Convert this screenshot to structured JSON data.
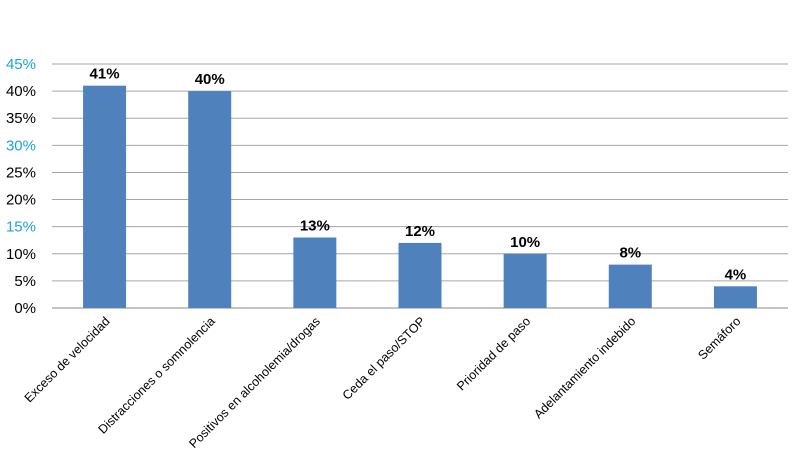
{
  "chart_data": {
    "type": "bar",
    "title": "",
    "xlabel": "",
    "ylabel": "",
    "categories": [
      "Exceso de velocidad",
      "Distracciones o somnolencia",
      "Positivos en alcoholemia/drogas",
      "Ceda el paso/STOP",
      "Prioridad de paso",
      "Adelantamiento indebido",
      "Semáforo"
    ],
    "values": [
      41,
      40,
      13,
      12,
      10,
      8,
      4
    ],
    "data_labels": [
      "41%",
      "40%",
      "13%",
      "12%",
      "10%",
      "8%",
      "4%"
    ],
    "ylim": [
      0,
      45
    ],
    "yticks": [
      0,
      5,
      10,
      15,
      20,
      25,
      30,
      35,
      40,
      45
    ],
    "ytick_labels": [
      "0%",
      "5%",
      "10%",
      "15%",
      "20%",
      "25%",
      "30%",
      "35%",
      "40%",
      "45%"
    ],
    "grid": true,
    "legend": "none",
    "colors": {
      "bar": "#4f81bd",
      "grid": "#a6a6a6",
      "tick_default": "#000000",
      "tick_highlight": "#1aa3d9"
    },
    "highlight_ticks": [
      "15%",
      "30%",
      "45%"
    ]
  }
}
